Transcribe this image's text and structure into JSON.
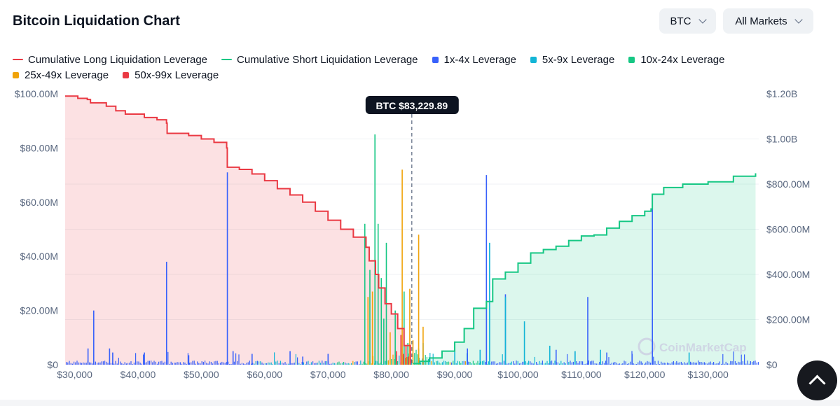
{
  "header": {
    "title": "Bitcoin Liquidation Chart"
  },
  "controls": {
    "asset": "BTC",
    "market": "All Markets"
  },
  "watermark": "CoinMarketCap",
  "colors": {
    "long": "#ea3943",
    "short": "#16c784",
    "lev_1_4": "#3861fb",
    "lev_5_9": "#13b5d6",
    "lev_10_24": "#16c784",
    "lev_25_49": "#f0a30a",
    "lev_50_99": "#ea3943"
  },
  "chart_data": {
    "type": "area",
    "title": "Bitcoin Liquidation Chart",
    "x_ticks": [
      "$30,000",
      "$40,000",
      "$50,000",
      "$60,000",
      "$70,000",
      "$80,000",
      "$90,000",
      "$100,000",
      "$110,000",
      "$120,000",
      "$130,000"
    ],
    "xlim": [
      28500,
      138000
    ],
    "y_left_ticks": [
      "$0",
      "$20.00M",
      "$40.00M",
      "$60.00M",
      "$80.00M",
      "$100.00M"
    ],
    "y_left_range": [
      0,
      100000000
    ],
    "y_right_ticks": [
      "$0",
      "$200.00M",
      "$400.00M",
      "$600.00M",
      "$800.00M",
      "$1.00B",
      "$1.20B"
    ],
    "y_right_range": [
      0,
      1200000000
    ],
    "current_price_label": "BTC $83,229.89",
    "current_price": 83229.89,
    "legend": [
      {
        "name": "Cumulative Long Liquidation Leverage",
        "kind": "line",
        "color": "#ea3943"
      },
      {
        "name": "Cumulative Short Liquidation Leverage",
        "kind": "line",
        "color": "#16c784"
      },
      {
        "name": "1x-4x Leverage",
        "kind": "box",
        "color": "#3861fb"
      },
      {
        "name": "5x-9x Leverage",
        "kind": "box",
        "color": "#13b5d6"
      },
      {
        "name": "10x-24x Leverage",
        "kind": "box",
        "color": "#16c784"
      },
      {
        "name": "25x-49x Leverage",
        "kind": "box",
        "color": "#f0a30a"
      },
      {
        "name": "50x-99x Leverage",
        "kind": "box",
        "color": "#ea3943"
      }
    ],
    "series": [
      {
        "name": "Cumulative Long Liquidation Leverage",
        "axis": "right",
        "x": [
          28500,
          30500,
          32000,
          32500,
          35000,
          36500,
          38000,
          41000,
          43000,
          44500,
          44600,
          48000,
          50000,
          52000,
          54000,
          54100,
          56000,
          58000,
          60000,
          62000,
          64000,
          66000,
          68000,
          70000,
          72000,
          74000,
          76000,
          76500,
          77500,
          78000,
          79000,
          80000,
          81000,
          82000,
          83000
        ],
        "y": [
          1190000000,
          1180000000,
          1175000000,
          1160000000,
          1145000000,
          1125000000,
          1110000000,
          1095000000,
          1085000000,
          1070000000,
          1025000000,
          1015000000,
          1000000000,
          985000000,
          960000000,
          875000000,
          865000000,
          845000000,
          815000000,
          780000000,
          752000000,
          720000000,
          680000000,
          640000000,
          600000000,
          565000000,
          520000000,
          460000000,
          400000000,
          340000000,
          270000000,
          225000000,
          160000000,
          85000000,
          10000000
        ]
      },
      {
        "name": "Cumulative Short Liquidation Leverage",
        "axis": "right",
        "x": [
          83400,
          84500,
          86000,
          88000,
          90000,
          91500,
          93000,
          95000,
          96000,
          98000,
          100000,
          102000,
          104000,
          106000,
          108000,
          110000,
          112000,
          114000,
          116000,
          118000,
          120000,
          121000,
          121200,
          123000,
          126000,
          130000,
          134000,
          137500
        ],
        "y": [
          5000000,
          15000000,
          30000000,
          60000000,
          100000000,
          160000000,
          250000000,
          280000000,
          380000000,
          410000000,
          450000000,
          495000000,
          510000000,
          525000000,
          550000000,
          570000000,
          575000000,
          605000000,
          635000000,
          660000000,
          680000000,
          690000000,
          755000000,
          785000000,
          800000000,
          810000000,
          835000000,
          848000000
        ]
      },
      {
        "name": "1x-4x Leverage",
        "axis": "left",
        "x": [
          32100,
          33000,
          35500,
          36000,
          41000,
          44500,
          48000,
          54100,
          55000,
          58000,
          64000,
          66000,
          70000,
          92000,
          95000,
          98000,
          106000,
          111000,
          114000,
          118000,
          121200
        ],
        "y": [
          6000000,
          20000000,
          6000000,
          4500000,
          4500000,
          38000000,
          3500000,
          71000000,
          5000000,
          4000000,
          5000000,
          3000000,
          4000000,
          6000000,
          70000000,
          26000000,
          5500000,
          25000000,
          4500000,
          4000000,
          62000000
        ]
      },
      {
        "name": "5x-9x Leverage",
        "axis": "left",
        "x": [
          85000,
          90000,
          94000,
          95500,
          98000,
          101000,
          105000,
          109000,
          113000,
          127000
        ],
        "y": [
          8000000,
          6000000,
          5500000,
          45000000,
          25000000,
          16000000,
          7000000,
          5000000,
          5500000,
          4500000
        ]
      },
      {
        "name": "10x-24x Leverage",
        "axis": "left",
        "x": [
          75800,
          76600,
          77400,
          77900,
          78400,
          78800,
          79200,
          80600,
          82000,
          82600,
          84300
        ],
        "y": [
          52000000,
          35000000,
          85000000,
          52000000,
          32000000,
          17000000,
          45000000,
          20000000,
          27000000,
          8000000,
          6000000
        ]
      },
      {
        "name": "25x-49x Leverage",
        "axis": "left",
        "x": [
          76300,
          77000,
          79800,
          81700,
          82900,
          83400,
          84300,
          85000
        ],
        "y": [
          25000000,
          27000000,
          12000000,
          72000000,
          28000000,
          9000000,
          48000000,
          14000000
        ]
      },
      {
        "name": "50x-99x Leverage",
        "axis": "left",
        "x": [
          80800,
          81500,
          81900,
          82300,
          82700,
          83000
        ],
        "y": [
          5000000,
          11000000,
          4000000,
          7000000,
          3000000,
          2000000
        ]
      }
    ]
  }
}
